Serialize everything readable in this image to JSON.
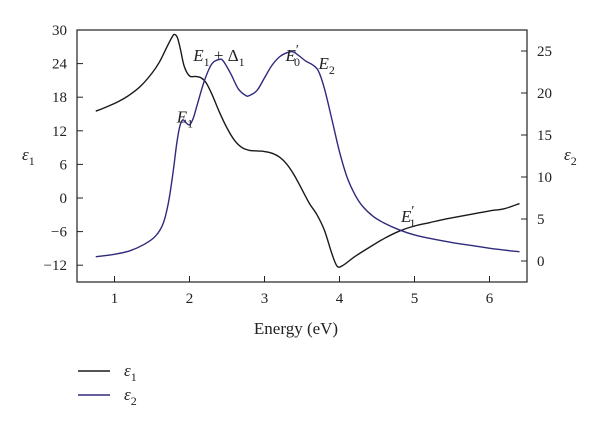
{
  "chart_data": {
    "type": "line",
    "xlabel": "Energy (eV)",
    "xlim": [
      0.5,
      6.5
    ],
    "xticks": [
      1,
      2,
      3,
      4,
      5,
      6
    ],
    "y_left": {
      "label": "ε",
      "sub": "1",
      "lim": [
        -15,
        30
      ],
      "ticks": [
        -12,
        -6,
        0,
        6,
        12,
        18,
        24,
        30
      ]
    },
    "y_right": {
      "label": "ε",
      "sub": "2",
      "lim": [
        -2.5,
        27.5
      ],
      "ticks": [
        0,
        5,
        10,
        15,
        20,
        25
      ]
    },
    "legend_position": "bottom-left",
    "series": [
      {
        "name": "ε1",
        "sym": "ε",
        "sub": "1",
        "axis": "left",
        "color": "#1a1a1a",
        "x": [
          0.75,
          0.9,
          1.05,
          1.2,
          1.35,
          1.5,
          1.6,
          1.7,
          1.77,
          1.8,
          1.84,
          1.88,
          1.93,
          2.0,
          2.08,
          2.15,
          2.22,
          2.3,
          2.4,
          2.5,
          2.6,
          2.7,
          2.8,
          2.9,
          3.0,
          3.1,
          3.2,
          3.3,
          3.4,
          3.5,
          3.6,
          3.7,
          3.8,
          3.9,
          3.97,
          4.05,
          4.2,
          4.4,
          4.6,
          4.8,
          5.0,
          5.2,
          5.4,
          5.6,
          5.8,
          6.0,
          6.2,
          6.4
        ],
        "y": [
          15.5,
          16.3,
          17.2,
          18.4,
          20.0,
          22.3,
          24.3,
          27.0,
          28.8,
          29.2,
          28.6,
          26.5,
          23.5,
          21.8,
          21.7,
          21.5,
          20.6,
          18.5,
          15.3,
          12.5,
          10.3,
          9.0,
          8.5,
          8.4,
          8.3,
          8.0,
          7.3,
          6.0,
          4.0,
          1.5,
          -1.0,
          -3.0,
          -5.8,
          -10.0,
          -12.2,
          -12.0,
          -10.5,
          -8.8,
          -7.2,
          -5.9,
          -5.0,
          -4.4,
          -3.8,
          -3.3,
          -2.8,
          -2.3,
          -1.9,
          -1.0
        ]
      },
      {
        "name": "ε2",
        "sym": "ε",
        "sub": "2",
        "axis": "right",
        "color": "#2e2a7c",
        "x": [
          0.75,
          1.0,
          1.2,
          1.4,
          1.55,
          1.65,
          1.72,
          1.78,
          1.83,
          1.87,
          1.91,
          1.95,
          2.0,
          2.05,
          2.1,
          2.2,
          2.3,
          2.4,
          2.45,
          2.55,
          2.65,
          2.75,
          2.8,
          2.9,
          3.0,
          3.1,
          3.2,
          3.3,
          3.38,
          3.45,
          3.55,
          3.65,
          3.72,
          3.8,
          3.9,
          4.0,
          4.1,
          4.2,
          4.3,
          4.45,
          4.6,
          4.8,
          5.0,
          5.2,
          5.5,
          5.8,
          6.1,
          6.4
        ],
        "y": [
          0.5,
          0.8,
          1.2,
          2.0,
          3.0,
          4.5,
          7.0,
          10.5,
          14.0,
          16.0,
          16.8,
          16.5,
          16.2,
          17.0,
          18.5,
          21.5,
          23.5,
          24.0,
          23.8,
          22.3,
          20.5,
          19.7,
          19.7,
          20.3,
          21.8,
          23.3,
          24.3,
          24.8,
          24.9,
          24.5,
          23.8,
          23.3,
          22.6,
          20.5,
          16.8,
          13.0,
          10.0,
          8.0,
          6.6,
          5.3,
          4.5,
          3.7,
          3.1,
          2.7,
          2.2,
          1.8,
          1.4,
          1.1
        ]
      }
    ],
    "annotations": [
      {
        "base": "E",
        "sub": "1",
        "tail": "",
        "x": 1.83,
        "y_axis": "left",
        "y": 13.5
      },
      {
        "base": "E",
        "sub": "1",
        "tail": " + Δ",
        "tail_sub": "1",
        "x": 2.05,
        "y_axis": "left",
        "y": 24.5
      },
      {
        "base": "E",
        "sub": "0",
        "prime": "′",
        "tail": "",
        "x": 3.28,
        "y_axis": "left",
        "y": 24.5
      },
      {
        "base": "E",
        "sub": "2",
        "tail": "",
        "x": 3.72,
        "y_axis": "left",
        "y": 23.0
      },
      {
        "base": "E",
        "sub": "1",
        "prime": "′",
        "tail": "",
        "x": 4.82,
        "y_axis": "left",
        "y": -4.3
      }
    ]
  }
}
